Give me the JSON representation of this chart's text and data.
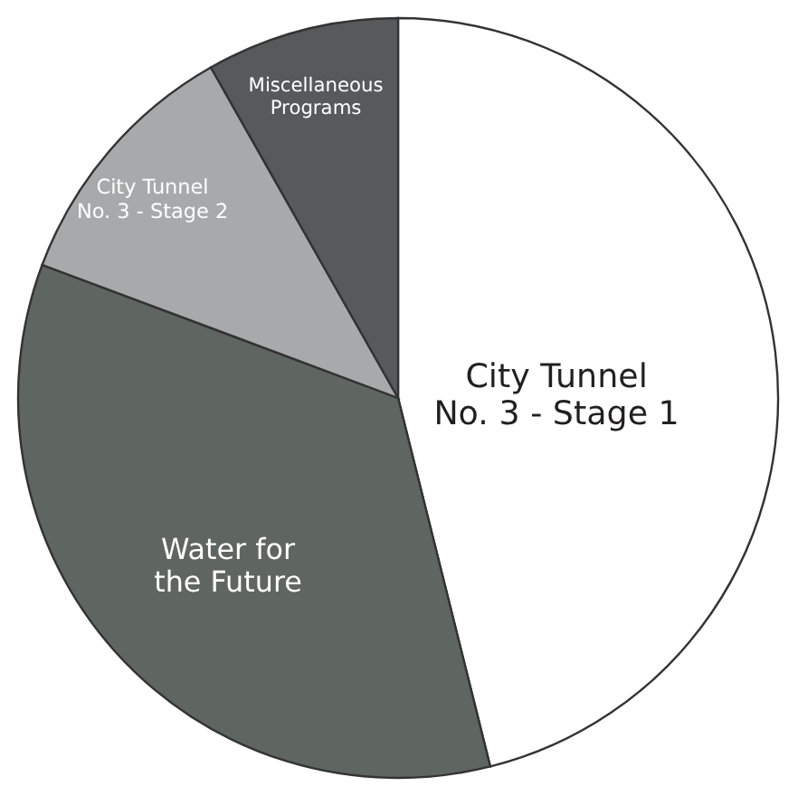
{
  "chart_data": {
    "type": "pie",
    "categories": [
      "City Tunnel\nNo. 3 - Stage 1",
      "Water for\nthe Future",
      "City Tunnel\nNo. 3 - Stage 2",
      "Miscellaneous\nPrograms"
    ],
    "values": [
      46.1,
      34.6,
      11.1,
      8.2
    ],
    "colors": [
      "#ffffff",
      "#5f6560",
      "#a7a9ab",
      "#58595b"
    ],
    "legend": false
  }
}
